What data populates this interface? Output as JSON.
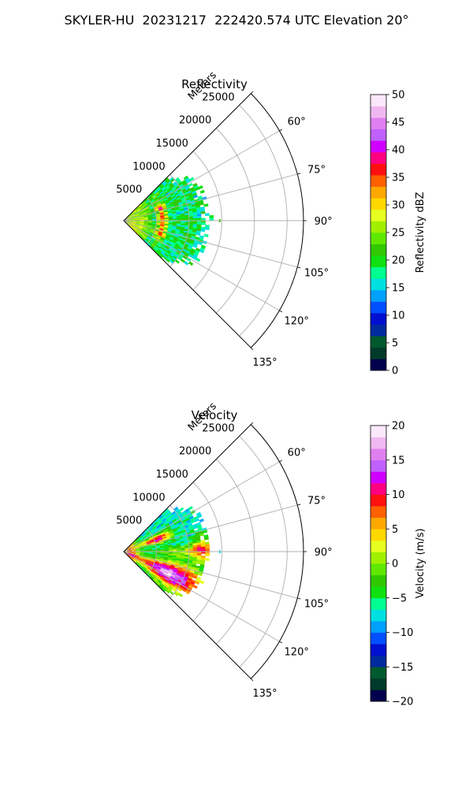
{
  "figure_title": "SKYLER-HU  20231217  222420.574 UTC Elevation 20°",
  "chart_data": [
    {
      "type": "polar sector (radar PPI)",
      "title": "Reflectivity",
      "radial_axis_label": "Meters",
      "r_ticks": [
        5000,
        10000,
        15000,
        20000,
        25000
      ],
      "r_tick_labels": [
        "5000",
        "10000",
        "15000",
        "20000",
        "25000"
      ],
      "theta_ticks_deg": [
        45,
        60,
        75,
        90,
        105,
        120,
        135
      ],
      "theta_tick_labels": [
        "",
        "60°",
        "75°",
        "90°",
        "105°",
        "120°",
        "135°"
      ],
      "theta_range_deg": [
        45,
        135
      ],
      "r_range": [
        0,
        27500
      ],
      "grid": true,
      "colorbar": {
        "label": "Reflectivity dBZ",
        "range": [
          0,
          50
        ],
        "ticks": [
          0,
          5,
          10,
          15,
          20,
          25,
          30,
          35,
          40,
          45,
          50
        ],
        "tick_labels": [
          "0",
          "5",
          "10",
          "15",
          "20",
          "25",
          "30",
          "35",
          "40",
          "45",
          "50"
        ]
      },
      "data_coverage": {
        "theta_deg": [
          45,
          135
        ],
        "r_max_approx": 13000
      },
      "observed_features": [
        {
          "description": "arc of high reflectivity",
          "r_approx": 5000,
          "theta_deg": [
            67,
            112
          ],
          "value_dBZ": [
            33,
            40
          ]
        },
        {
          "description": "near-range band",
          "r_approx": [
            0,
            4000
          ],
          "value_dBZ": [
            22,
            30
          ]
        },
        {
          "description": "outer field",
          "r_approx": [
            6000,
            13000
          ],
          "value_dBZ": [
            15,
            22
          ]
        }
      ]
    },
    {
      "type": "polar sector (radar PPI)",
      "title": "Velocity",
      "radial_axis_label": "Meters",
      "r_ticks": [
        5000,
        10000,
        15000,
        20000,
        25000
      ],
      "r_tick_labels": [
        "5000",
        "10000",
        "15000",
        "20000",
        "25000"
      ],
      "theta_ticks_deg": [
        45,
        60,
        75,
        90,
        105,
        120,
        135
      ],
      "theta_tick_labels": [
        "",
        "60°",
        "75°",
        "90°",
        "105°",
        "120°",
        "135°"
      ],
      "theta_range_deg": [
        45,
        135
      ],
      "r_range": [
        0,
        27500
      ],
      "grid": true,
      "colorbar": {
        "label": "Velocity (m/s)",
        "range": [
          -20,
          20
        ],
        "ticks": [
          -20,
          -15,
          -10,
          -5,
          0,
          5,
          10,
          15,
          20
        ],
        "tick_labels": [
          "−20",
          "−15",
          "−10",
          "−5",
          "0",
          "5",
          "10",
          "15",
          "20"
        ]
      },
      "data_coverage": {
        "theta_deg": [
          45,
          135
        ],
        "r_max_approx": 13000
      },
      "observed_features": [
        {
          "description": "positive velocity band, upper",
          "theta_deg": [
            62,
            80
          ],
          "r_approx": [
            3000,
            8000
          ],
          "value_ms": [
            8,
            14
          ]
        },
        {
          "description": "positive velocity band, lower",
          "theta_deg": [
            100,
            130
          ],
          "r_approx": [
            2000,
            12000
          ],
          "value_ms": [
            12,
            18
          ]
        },
        {
          "description": "negative velocity core",
          "theta_deg": [
            60,
            105
          ],
          "r_approx": [
            4000,
            13000
          ],
          "value_ms": [
            -12,
            -6
          ]
        },
        {
          "description": "near-zero along centre",
          "theta_deg": [
            82,
            98
          ],
          "r_approx": [
            1000,
            12000
          ],
          "value_ms": [
            -3,
            3
          ]
        }
      ]
    }
  ],
  "colormaps": {
    "reflectivity": [
      "#00004d",
      "#003a2a",
      "#005a2e",
      "#002a9e",
      "#0010d0",
      "#0050ff",
      "#00a0ff",
      "#00e0e0",
      "#00ff90",
      "#10e010",
      "#30c800",
      "#60e800",
      "#a0f000",
      "#e6ff20",
      "#ffd800",
      "#ffa800",
      "#ff6000",
      "#ff1010",
      "#ff0080",
      "#d000ff",
      "#c060ff",
      "#e080f0",
      "#f0b8f0",
      "#fbe8fb"
    ],
    "velocity": [
      "#00004d",
      "#003a2a",
      "#005a2e",
      "#002a9e",
      "#0010d0",
      "#0050ff",
      "#00a0ff",
      "#00e0e0",
      "#00ff90",
      "#10e010",
      "#30c800",
      "#60e800",
      "#a0f000",
      "#e6ff20",
      "#ffd800",
      "#ffa800",
      "#ff6000",
      "#ff1010",
      "#ff0080",
      "#d000ff",
      "#c060ff",
      "#e080f0",
      "#f0b8f0",
      "#fbe8fb"
    ]
  },
  "colors": {
    "grid": "#b0b0b0",
    "frame": "#000000"
  }
}
